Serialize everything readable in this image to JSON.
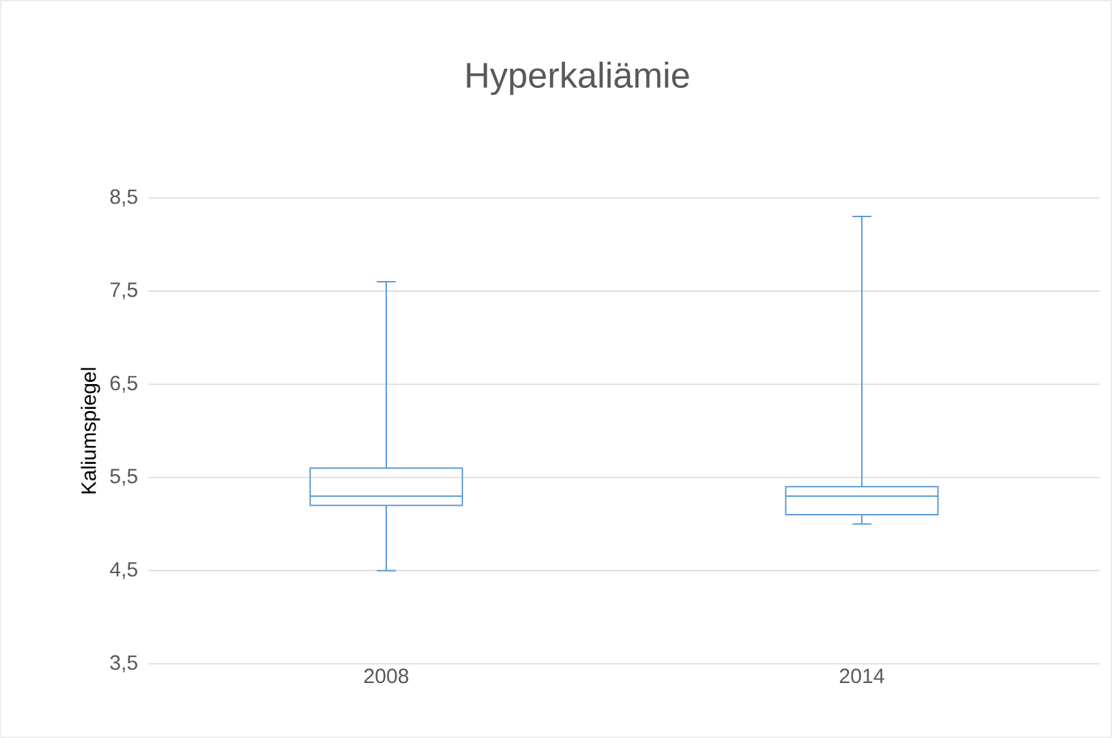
{
  "chart_data": {
    "type": "box",
    "title": "Hyperkaliämie",
    "ylabel": "Kaliumspiegel",
    "categories": [
      "2008",
      "2014"
    ],
    "boxes": [
      {
        "low": 4.5,
        "q1": 5.2,
        "median": 5.3,
        "q3": 5.6,
        "high": 7.6
      },
      {
        "low": 5.0,
        "q1": 5.1,
        "median": 5.3,
        "q3": 5.4,
        "high": 8.3
      }
    ],
    "color": "#5b9bd5",
    "ylim": [
      3.5,
      8.5
    ],
    "yticks": [
      {
        "value": 3.5,
        "label": "3,5"
      },
      {
        "value": 4.5,
        "label": "4,5"
      },
      {
        "value": 5.5,
        "label": "5,5"
      },
      {
        "value": 6.5,
        "label": "6,5"
      },
      {
        "value": 7.5,
        "label": "7,5"
      },
      {
        "value": 8.5,
        "label": "8,5"
      }
    ],
    "grid": "y"
  }
}
